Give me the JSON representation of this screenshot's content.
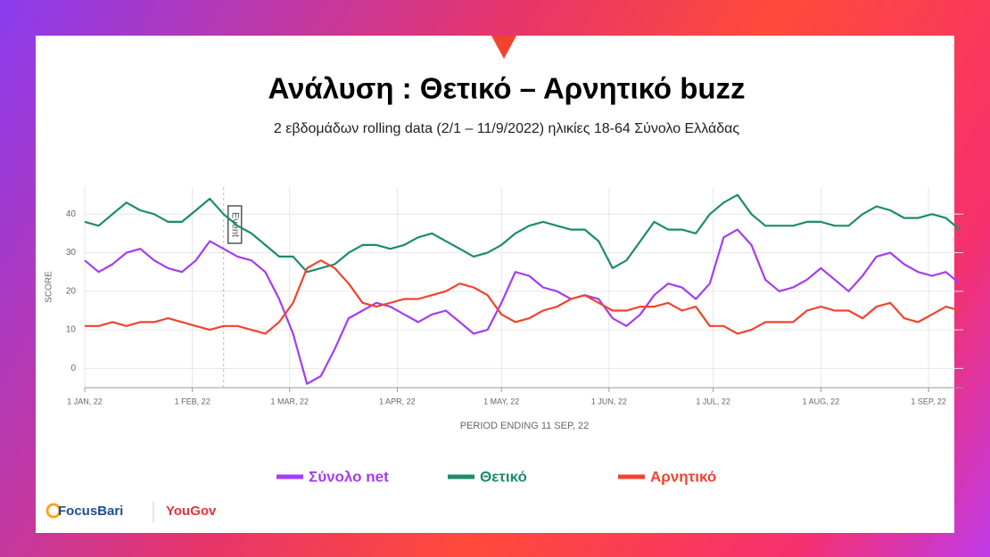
{
  "chart_data": {
    "type": "line",
    "title": "Ανάλυση : Θετικό – Αρνητικό buzz",
    "subtitle": "2 εβδομάδων  rolling data (2/1 – 11/9/2022) ηλικίες 18-64 Σύνολο Ελλάδας",
    "y_label": "SCORE",
    "x_label": "PERIOD ENDING 11 SEP, 22",
    "annotations": [
      {
        "x": "2022-02-10",
        "label": "Event"
      }
    ],
    "x": [
      "2022-01-01",
      "2022-01-05",
      "2022-01-09",
      "2022-01-13",
      "2022-01-17",
      "2022-01-21",
      "2022-01-25",
      "2022-01-29",
      "2022-02-02",
      "2022-02-06",
      "2022-02-10",
      "2022-02-14",
      "2022-02-18",
      "2022-02-22",
      "2022-02-26",
      "2022-03-02",
      "2022-03-06",
      "2022-03-10",
      "2022-03-14",
      "2022-03-18",
      "2022-03-22",
      "2022-03-26",
      "2022-03-30",
      "2022-04-03",
      "2022-04-07",
      "2022-04-11",
      "2022-04-15",
      "2022-04-19",
      "2022-04-23",
      "2022-04-27",
      "2022-05-01",
      "2022-05-05",
      "2022-05-09",
      "2022-05-13",
      "2022-05-17",
      "2022-05-21",
      "2022-05-25",
      "2022-05-29",
      "2022-06-02",
      "2022-06-06",
      "2022-06-10",
      "2022-06-14",
      "2022-06-18",
      "2022-06-22",
      "2022-06-26",
      "2022-06-30",
      "2022-07-04",
      "2022-07-08",
      "2022-07-12",
      "2022-07-16",
      "2022-07-20",
      "2022-07-24",
      "2022-07-28",
      "2022-08-01",
      "2022-08-05",
      "2022-08-09",
      "2022-08-13",
      "2022-08-17",
      "2022-08-21",
      "2022-08-25",
      "2022-08-29",
      "2022-09-02",
      "2022-09-06",
      "2022-09-10"
    ],
    "series": [
      {
        "name": "Σύνολο net",
        "color": "#a23cf5",
        "values": [
          28,
          25,
          27,
          30,
          31,
          28,
          26,
          25,
          28,
          33,
          31,
          29,
          28,
          25,
          18,
          9,
          -4,
          -2,
          5,
          13,
          15,
          17,
          16,
          14,
          12,
          14,
          15,
          12,
          9,
          10,
          17,
          25,
          24,
          21,
          20,
          18,
          19,
          18,
          13,
          11,
          14,
          19,
          22,
          21,
          18,
          22,
          34,
          36,
          32,
          23,
          20,
          21,
          23,
          26,
          23,
          20,
          24,
          29,
          30,
          27,
          25,
          24,
          25,
          22
        ]
      },
      {
        "name": "Θετικό",
        "color": "#1b8c6e",
        "values": [
          38,
          37,
          40,
          43,
          41,
          40,
          38,
          38,
          41,
          44,
          40,
          37,
          35,
          32,
          29,
          29,
          25,
          26,
          27,
          30,
          32,
          32,
          31,
          32,
          34,
          35,
          33,
          31,
          29,
          30,
          32,
          35,
          37,
          38,
          37,
          36,
          36,
          33,
          26,
          28,
          33,
          38,
          36,
          36,
          35,
          40,
          43,
          45,
          40,
          37,
          37,
          37,
          38,
          38,
          37,
          37,
          40,
          42,
          41,
          39,
          39,
          40,
          39,
          36
        ]
      },
      {
        "name": "Αρνητικό",
        "color": "#f2432f",
        "values": [
          11,
          11,
          12,
          11,
          12,
          12,
          13,
          12,
          11,
          10,
          11,
          11,
          10,
          9,
          12,
          17,
          26,
          28,
          26,
          22,
          17,
          16,
          17,
          18,
          18,
          19,
          20,
          22,
          21,
          19,
          14,
          12,
          13,
          15,
          16,
          18,
          19,
          17,
          15,
          15,
          16,
          16,
          17,
          15,
          16,
          11,
          11,
          9,
          10,
          12,
          12,
          12,
          15,
          16,
          15,
          15,
          13,
          16,
          17,
          13,
          12,
          14,
          16,
          15
        ]
      }
    ],
    "xlim": [
      "2022-01-01",
      "2022-09-11"
    ],
    "xticks": [
      {
        "value": "2022-01-01",
        "label": "1 JAN, 22"
      },
      {
        "value": "2022-02-01",
        "label": "1 FEB, 22"
      },
      {
        "value": "2022-03-01",
        "label": "1 MAR, 22"
      },
      {
        "value": "2022-04-01",
        "label": "1 APR, 22"
      },
      {
        "value": "2022-05-01",
        "label": "1 MAY, 22"
      },
      {
        "value": "2022-06-01",
        "label": "1 JUN, 22"
      },
      {
        "value": "2022-07-01",
        "label": "1 JUL, 22"
      },
      {
        "value": "2022-08-01",
        "label": "1 AUG, 22"
      },
      {
        "value": "2022-09-01",
        "label": "1 SEP, 22"
      }
    ],
    "ylim": [
      -5,
      47
    ],
    "yticks": [
      0,
      10,
      20,
      30,
      40
    ],
    "grid": true
  },
  "logos": [
    "FocusBari",
    "YouGov"
  ]
}
